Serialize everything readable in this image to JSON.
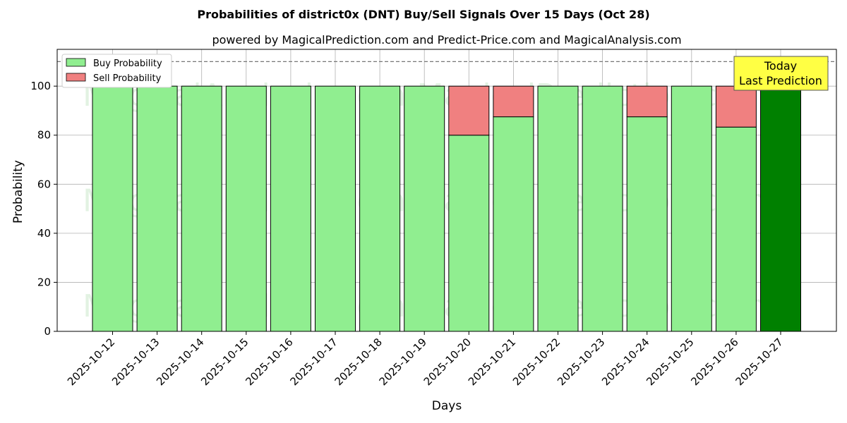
{
  "chart_data": {
    "type": "bar",
    "title": "Probabilities of district0x (DNT) Buy/Sell Signals Over 15 Days (Oct 28)",
    "subtitle": "powered by MagicalPrediction.com and Predict-Price.com and MagicalAnalysis.com",
    "xlabel": "Days",
    "ylabel": "Probability",
    "ylim": [
      0,
      115
    ],
    "yticks": [
      0,
      20,
      40,
      60,
      80,
      100
    ],
    "reference_line": 110,
    "grid": true,
    "legend_position": "top-left",
    "categories": [
      "2025-10-12",
      "2025-10-13",
      "2025-10-14",
      "2025-10-15",
      "2025-10-16",
      "2025-10-17",
      "2025-10-18",
      "2025-10-19",
      "2025-10-20",
      "2025-10-21",
      "2025-10-22",
      "2025-10-23",
      "2025-10-24",
      "2025-10-25",
      "2025-10-26",
      "2025-10-27"
    ],
    "series": [
      {
        "name": "Buy Probability",
        "color": "#90ee90",
        "values": [
          100,
          100,
          100,
          100,
          100,
          100,
          100,
          100,
          80,
          87.5,
          100,
          100,
          87.5,
          100,
          83.3,
          100
        ]
      },
      {
        "name": "Sell Probability",
        "color": "#f08080",
        "values": [
          0,
          0,
          0,
          0,
          0,
          0,
          0,
          0,
          20,
          12.5,
          0,
          0,
          12.5,
          0,
          16.7,
          0
        ]
      }
    ],
    "highlight": {
      "index": 15,
      "color": "#008000"
    },
    "annotation": {
      "line1": "Today",
      "line2": "Last Prediction",
      "background": "#ffff44"
    },
    "watermarks": [
      "MagicalAnalysis.com",
      "MagicalPrediction.com"
    ]
  }
}
